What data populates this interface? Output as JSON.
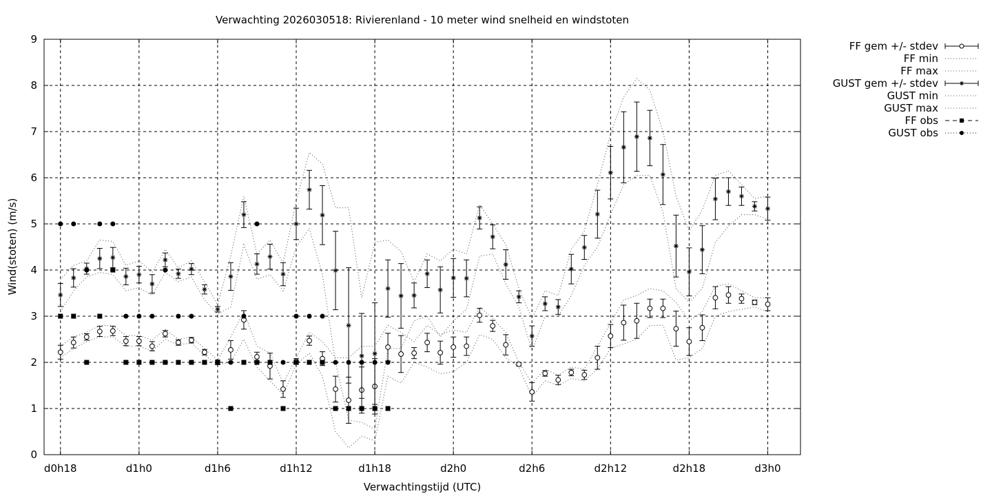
{
  "chart_data": {
    "type": "line",
    "title": "Verwachting 2026030518: Rivierenland - 10 meter wind snelheid en windstoten",
    "xlabel": "Verwachtingstijd (UTC)",
    "ylabel": "Wind(stoten) (m/s)",
    "xlim": [
      -1.25,
      56.5
    ],
    "ylim": [
      0,
      9
    ],
    "x_ticks": [
      {
        "x": 0,
        "label": "d0h18"
      },
      {
        "x": 6,
        "label": "d1h0"
      },
      {
        "x": 12,
        "label": "d1h6"
      },
      {
        "x": 18,
        "label": "d1h12"
      },
      {
        "x": 24,
        "label": "d1h18"
      },
      {
        "x": 30,
        "label": "d2h0"
      },
      {
        "x": 36,
        "label": "d2h6"
      },
      {
        "x": 42,
        "label": "d2h12"
      },
      {
        "x": 48,
        "label": "d2h18"
      },
      {
        "x": 54,
        "label": "d3h0"
      }
    ],
    "y_ticks": [
      "0",
      "1",
      "2",
      "3",
      "4",
      "5",
      "6",
      "7",
      "8",
      "9"
    ],
    "grid": true,
    "legend_position": "outside-right",
    "legend": [
      "FF gem +/- stdev",
      "FF min",
      "FF max",
      "GUST gem +/- stdev",
      "GUST min",
      "GUST max",
      "FF obs",
      "GUST obs"
    ],
    "series": [
      {
        "name": "FF gem +/- stdev",
        "x": [
          0,
          1,
          2,
          3,
          4,
          5,
          6,
          7,
          8,
          9,
          10,
          11,
          12,
          13,
          14,
          15,
          16,
          17,
          18,
          19,
          20,
          21,
          22,
          23,
          24,
          25,
          26,
          27,
          28,
          29,
          30,
          31,
          32,
          33,
          34,
          35,
          36,
          37,
          38,
          39,
          40,
          41,
          42,
          43,
          44,
          45,
          46,
          47,
          48,
          49,
          50,
          51,
          52,
          53,
          54
        ],
        "y": [
          2.22,
          2.43,
          2.55,
          2.67,
          2.68,
          2.46,
          2.46,
          2.35,
          2.62,
          2.43,
          2.48,
          2.22,
          2.0,
          2.27,
          2.92,
          2.12,
          1.92,
          1.42,
          2.02,
          2.47,
          2.08,
          1.42,
          1.18,
          1.4,
          1.48,
          2.33,
          2.18,
          2.2,
          2.43,
          2.21,
          2.33,
          2.35,
          3.02,
          2.79,
          2.38,
          1.96,
          1.36,
          1.76,
          1.62,
          1.78,
          1.73,
          2.1,
          2.57,
          2.86,
          2.9,
          3.17,
          3.17,
          2.73,
          2.45,
          2.75,
          3.4,
          3.46,
          3.38,
          3.3,
          3.26
        ],
        "stdev": [
          0.15,
          0.12,
          0.07,
          0.11,
          0.1,
          0.1,
          0.1,
          0.1,
          0.07,
          0.06,
          0.06,
          0.06,
          0.05,
          0.2,
          0.2,
          0.1,
          0.28,
          0.18,
          0.06,
          0.1,
          0.15,
          0.28,
          0.5,
          0.5,
          0.6,
          0.3,
          0.4,
          0.12,
          0.2,
          0.25,
          0.22,
          0.2,
          0.15,
          0.12,
          0.22,
          0.04,
          0.2,
          0.06,
          0.1,
          0.07,
          0.1,
          0.25,
          0.25,
          0.38,
          0.38,
          0.2,
          0.2,
          0.38,
          0.3,
          0.28,
          0.24,
          0.18,
          0.1,
          0.05,
          0.14
        ]
      },
      {
        "name": "FF min",
        "x": [
          0,
          1,
          2,
          3,
          4,
          5,
          6,
          7,
          8,
          9,
          10,
          11,
          12,
          13,
          14,
          15,
          16,
          17,
          18,
          19,
          20,
          21,
          22,
          23,
          24,
          25,
          26,
          27,
          28,
          29,
          30,
          31,
          32,
          33,
          34,
          35,
          36,
          37,
          38,
          39,
          40,
          41,
          42,
          43,
          44,
          45,
          46,
          47,
          48,
          49,
          50,
          51,
          52,
          53,
          54
        ],
        "y": [
          2.1,
          2.3,
          2.45,
          2.55,
          2.55,
          2.35,
          2.35,
          2.25,
          2.5,
          2.38,
          2.42,
          2.15,
          1.95,
          2.0,
          2.5,
          1.9,
          1.6,
          1.3,
          1.95,
          2.2,
          1.7,
          0.5,
          0.15,
          0.4,
          0.3,
          1.7,
          1.55,
          2.0,
          1.9,
          1.75,
          1.8,
          2.0,
          2.6,
          2.5,
          2.1,
          1.9,
          1.25,
          1.6,
          1.5,
          1.65,
          1.6,
          1.85,
          2.3,
          2.4,
          2.5,
          2.8,
          2.8,
          2.05,
          2.1,
          2.3,
          3.0,
          3.1,
          3.15,
          3.2,
          3.1
        ]
      },
      {
        "name": "FF max",
        "x": [
          0,
          1,
          2,
          3,
          4,
          5,
          6,
          7,
          8,
          9,
          10,
          11,
          12,
          13,
          14,
          15,
          16,
          17,
          18,
          19,
          20,
          21,
          22,
          23,
          24,
          25,
          26,
          27,
          28,
          29,
          30,
          31,
          32,
          33,
          34,
          35,
          36,
          37,
          38,
          39,
          40,
          41,
          42,
          43,
          44,
          45,
          46,
          47,
          48,
          49,
          50,
          51,
          52,
          53,
          54
        ],
        "y": [
          2.35,
          2.55,
          2.65,
          2.8,
          2.8,
          2.58,
          2.58,
          2.48,
          2.72,
          2.5,
          2.55,
          2.3,
          2.05,
          2.55,
          3.1,
          2.35,
          2.2,
          1.55,
          2.1,
          2.65,
          2.45,
          2.1,
          2.1,
          2.35,
          2.35,
          2.8,
          2.65,
          2.45,
          2.8,
          2.6,
          2.7,
          2.65,
          3.2,
          2.95,
          2.65,
          2.0,
          1.55,
          1.85,
          1.72,
          1.9,
          1.85,
          2.35,
          2.85,
          3.35,
          3.45,
          3.6,
          3.55,
          3.3,
          2.9,
          3.1,
          3.65,
          3.7,
          3.55,
          3.4,
          3.4
        ]
      },
      {
        "name": "GUST gem +/- stdev",
        "x": [
          0,
          1,
          2,
          3,
          4,
          5,
          6,
          7,
          8,
          9,
          10,
          11,
          12,
          13,
          14,
          15,
          16,
          17,
          18,
          19,
          20,
          21,
          22,
          23,
          24,
          25,
          26,
          27,
          28,
          29,
          30,
          31,
          32,
          33,
          34,
          35,
          36,
          37,
          38,
          39,
          40,
          41,
          42,
          43,
          44,
          45,
          46,
          47,
          48,
          49,
          50,
          51,
          52,
          53,
          54
        ],
        "y": [
          3.46,
          3.83,
          4.03,
          4.25,
          4.27,
          3.86,
          3.9,
          3.7,
          4.22,
          3.92,
          4.02,
          3.58,
          3.15,
          3.86,
          5.2,
          4.13,
          4.29,
          3.91,
          5.0,
          5.74,
          5.19,
          3.99,
          2.8,
          2.14,
          2.19,
          3.6,
          3.44,
          3.45,
          3.92,
          3.57,
          3.83,
          3.82,
          5.13,
          4.72,
          4.12,
          3.42,
          2.57,
          3.27,
          3.2,
          4.02,
          4.49,
          5.21,
          6.11,
          6.66,
          6.89,
          6.86,
          6.07,
          4.52,
          3.96,
          4.44,
          5.54,
          5.7,
          5.6,
          5.38,
          5.33
        ],
        "stdev": [
          0.25,
          0.2,
          0.12,
          0.22,
          0.22,
          0.18,
          0.18,
          0.2,
          0.15,
          0.1,
          0.12,
          0.1,
          0.06,
          0.3,
          0.28,
          0.22,
          0.27,
          0.25,
          0.34,
          0.42,
          0.64,
          0.85,
          1.25,
          0.92,
          1.1,
          0.62,
          0.7,
          0.27,
          0.3,
          0.5,
          0.42,
          0.4,
          0.24,
          0.26,
          0.32,
          0.13,
          0.22,
          0.15,
          0.16,
          0.32,
          0.26,
          0.52,
          0.57,
          0.77,
          0.75,
          0.6,
          0.65,
          0.67,
          0.52,
          0.52,
          0.45,
          0.3,
          0.2,
          0.1,
          0.25
        ]
      },
      {
        "name": "GUST min",
        "x": [
          0,
          1,
          2,
          3,
          4,
          5,
          6,
          7,
          8,
          9,
          10,
          11,
          12,
          13,
          14,
          15,
          16,
          17,
          18,
          19,
          20,
          21,
          22,
          23,
          24,
          25,
          26,
          27,
          28,
          29,
          30,
          31,
          32,
          33,
          34,
          35,
          36,
          37,
          38,
          39,
          40,
          41,
          42,
          43,
          44,
          45,
          46,
          47,
          48,
          49,
          50,
          51,
          52,
          53,
          54
        ],
        "y": [
          3.1,
          3.55,
          3.85,
          3.95,
          3.9,
          3.55,
          3.62,
          3.45,
          3.95,
          3.75,
          3.85,
          3.35,
          3.05,
          3.2,
          4.55,
          3.8,
          3.9,
          3.55,
          4.5,
          4.9,
          3.9,
          2.0,
          0.75,
          0.7,
          0.55,
          2.3,
          2.3,
          2.9,
          3.0,
          2.55,
          2.9,
          3.15,
          4.3,
          4.35,
          3.7,
          3.2,
          2.25,
          3.0,
          3.0,
          3.45,
          4.1,
          4.5,
          5.2,
          5.85,
          6.05,
          6.05,
          5.25,
          3.6,
          3.3,
          3.6,
          4.6,
          4.95,
          5.2,
          5.2,
          5.1
        ]
      },
      {
        "name": "GUST max",
        "x": [
          0,
          1,
          2,
          3,
          4,
          5,
          6,
          7,
          8,
          9,
          10,
          11,
          12,
          13,
          14,
          15,
          16,
          17,
          18,
          19,
          20,
          21,
          22,
          23,
          24,
          25,
          26,
          27,
          28,
          29,
          30,
          31,
          32,
          33,
          34,
          35,
          36,
          37,
          38,
          39,
          40,
          41,
          42,
          43,
          44,
          45,
          46,
          47,
          48,
          49,
          50,
          51,
          52,
          53,
          54
        ],
        "y": [
          3.8,
          4.1,
          4.2,
          4.65,
          4.62,
          4.1,
          4.2,
          3.95,
          4.45,
          4.05,
          4.2,
          3.75,
          3.25,
          4.3,
          5.6,
          4.35,
          4.65,
          4.15,
          5.5,
          6.55,
          6.3,
          5.35,
          5.35,
          3.4,
          4.6,
          4.65,
          4.4,
          3.75,
          4.35,
          4.2,
          4.45,
          4.35,
          5.42,
          5.0,
          4.55,
          3.6,
          2.95,
          3.55,
          3.45,
          4.45,
          4.85,
          5.85,
          6.95,
          7.75,
          8.15,
          7.9,
          7.0,
          5.6,
          4.85,
          5.3,
          6.05,
          6.15,
          5.85,
          5.55,
          5.6
        ]
      },
      {
        "name": "FF obs",
        "x": [
          0,
          1,
          2,
          3,
          4,
          5,
          6,
          7,
          8,
          9,
          10,
          11,
          12,
          13,
          14,
          15,
          16,
          17,
          18,
          19,
          20,
          21,
          22,
          23,
          24,
          25
        ],
        "y": [
          3,
          3,
          2,
          3,
          4,
          2,
          2,
          2,
          2,
          2,
          2,
          2,
          2,
          1,
          2,
          2,
          2,
          1,
          2,
          2,
          2,
          1,
          1,
          1,
          1,
          1
        ]
      },
      {
        "name": "GUST obs",
        "x": [
          0,
          1,
          2,
          3,
          4,
          5,
          6,
          7,
          8,
          9,
          10,
          11,
          12,
          13,
          14,
          15,
          16,
          17,
          18,
          19,
          20,
          21,
          22,
          23,
          24,
          25
        ],
        "y": [
          5,
          5,
          4,
          5,
          5,
          3,
          3,
          3,
          4,
          3,
          3,
          2,
          2,
          2,
          3,
          5,
          2,
          2,
          3,
          3,
          3,
          2,
          2,
          2,
          2,
          2
        ]
      }
    ]
  }
}
